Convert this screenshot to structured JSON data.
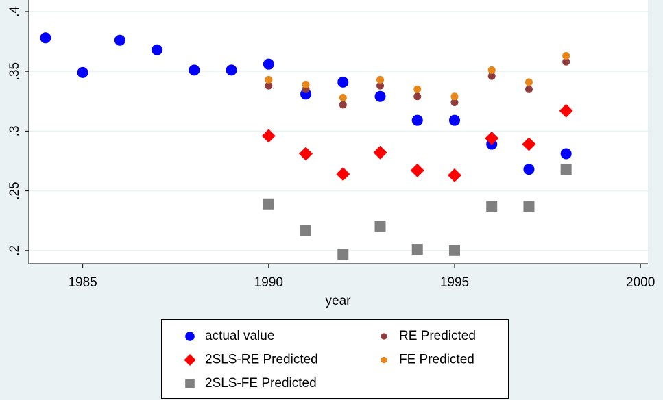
{
  "chart_data": {
    "type": "scatter",
    "x_label": "year",
    "xlim": [
      1983.55,
      2000.2
    ],
    "xticks": [
      1985,
      1990,
      1995,
      2000
    ],
    "ylim": [
      0.189,
      0.4097
    ],
    "yticks": [
      {
        "value": 0.2,
        "label": ".2"
      },
      {
        "value": 0.25,
        "label": ".25"
      },
      {
        "value": 0.3,
        "label": ".3"
      },
      {
        "value": 0.35,
        "label": ".35"
      },
      {
        "value": 0.4,
        "label": ".4"
      }
    ],
    "grid": true,
    "legend": "bottom",
    "series": [
      {
        "name": "actual value",
        "color": "#0000ff",
        "marker": "circle",
        "x": [
          1984,
          1985,
          1986,
          1987,
          1988,
          1989,
          1990,
          1991,
          1992,
          1993,
          1994,
          1995,
          1996,
          1997,
          1998
        ],
        "values": [
          0.378,
          0.349,
          0.376,
          0.368,
          0.351,
          0.351,
          0.356,
          0.331,
          0.341,
          0.329,
          0.309,
          0.309,
          0.289,
          0.268,
          0.281
        ]
      },
      {
        "name": "RE Predicted",
        "color": "#903c3c",
        "marker": "small-circle",
        "x": [
          1990,
          1991,
          1992,
          1993,
          1994,
          1995,
          1996,
          1997,
          1998
        ],
        "values": [
          0.338,
          0.335,
          0.322,
          0.338,
          0.329,
          0.324,
          0.346,
          0.335,
          0.358
        ]
      },
      {
        "name": "2SLS-RE Predicted",
        "color": "#ff0000",
        "marker": "diamond",
        "x": [
          1990,
          1991,
          1992,
          1993,
          1994,
          1995,
          1996,
          1997,
          1998
        ],
        "values": [
          0.296,
          0.281,
          0.264,
          0.282,
          0.267,
          0.263,
          0.294,
          0.289,
          0.317
        ]
      },
      {
        "name": "FE Predicted",
        "color": "#e8861a",
        "marker": "small-circle",
        "x": [
          1990,
          1991,
          1992,
          1993,
          1994,
          1995,
          1996,
          1997,
          1998
        ],
        "values": [
          0.343,
          0.339,
          0.328,
          0.343,
          0.335,
          0.329,
          0.351,
          0.341,
          0.363
        ]
      },
      {
        "name": "2SLS-FE Predicted",
        "color": "#808080",
        "marker": "square",
        "x": [
          1990,
          1991,
          1992,
          1993,
          1994,
          1995,
          1996,
          1997,
          1998
        ],
        "values": [
          0.239,
          0.217,
          0.197,
          0.22,
          0.201,
          0.2,
          0.237,
          0.237,
          0.268
        ]
      }
    ]
  }
}
